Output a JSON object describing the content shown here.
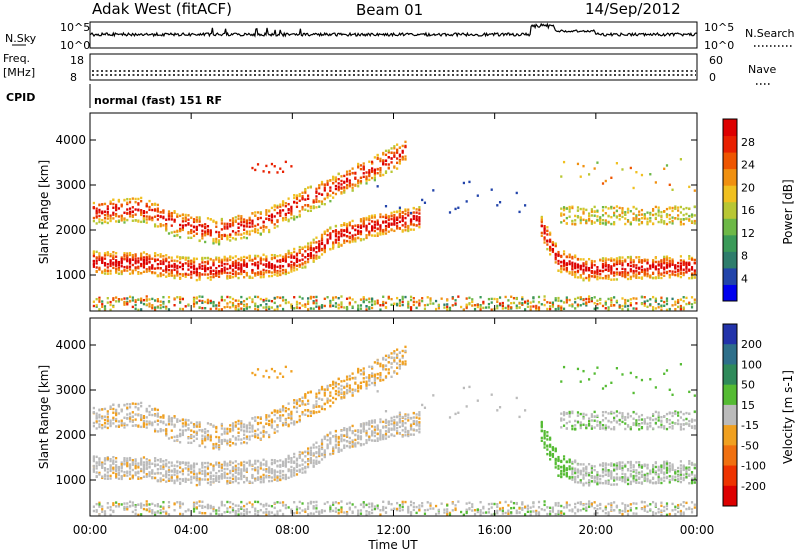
{
  "header": {
    "title": "Adak West (fitACF)",
    "beam": "Beam 01",
    "date": "14/Sep/2012"
  },
  "sky_panel": {
    "left_label": "N.Sky",
    "right_label": "N.Search",
    "left_ticks": [
      "10^5",
      "10^0"
    ],
    "right_ticks": [
      "10^5",
      "10^0"
    ]
  },
  "freq_panel": {
    "left_label_line1": "Freq.",
    "left_label_line2": "[MHz]",
    "right_label": "Nave",
    "left_ticks": [
      "18",
      "8"
    ],
    "right_ticks": [
      "60",
      "0"
    ]
  },
  "cpid_panel": {
    "left_label": "CPID",
    "text": "normal (fast) 151 RF"
  },
  "chart_data": [
    {
      "type": "heatmap",
      "name": "power",
      "ylabel": "Slant Range [km]",
      "ylim": [
        200,
        4600
      ],
      "y_ticks": [
        1000,
        2000,
        3000,
        4000
      ],
      "x_ticks": [
        "00:00",
        "04:00",
        "08:00",
        "12:00",
        "16:00",
        "20:00",
        "00:00"
      ],
      "xlim_hours": [
        0,
        24
      ],
      "colorbar": {
        "label": "Power [dB]",
        "ticks": [
          "4",
          "8",
          "12",
          "16",
          "20",
          "24",
          "28"
        ],
        "colors": [
          "#0000ee",
          "#2244aa",
          "#2e7d6c",
          "#3a9a58",
          "#6db847",
          "#b8c734",
          "#f0c020",
          "#f09010",
          "#ee5500",
          "#e82000",
          "#dd0000"
        ]
      }
    },
    {
      "type": "heatmap",
      "name": "velocity",
      "ylabel": "Slant Range [km]",
      "ylim": [
        200,
        4600
      ],
      "y_ticks": [
        1000,
        2000,
        3000,
        4000
      ],
      "x_ticks": [
        "00:00",
        "04:00",
        "08:00",
        "12:00",
        "16:00",
        "20:00",
        "00:00"
      ],
      "xlabel": "Time UT",
      "xlim_hours": [
        0,
        24
      ],
      "colorbar": {
        "label": "Velocity [m s-1]",
        "ticks": [
          "200",
          "100",
          "50",
          "15",
          "-15",
          "-50",
          "-100",
          "-200"
        ],
        "colors": [
          "#2233aa",
          "#2e6f8a",
          "#2f8a5a",
          "#55bb33",
          "#bbbbbb",
          "#f0a020",
          "#f07010",
          "#ee3300",
          "#dd0000"
        ]
      }
    }
  ]
}
